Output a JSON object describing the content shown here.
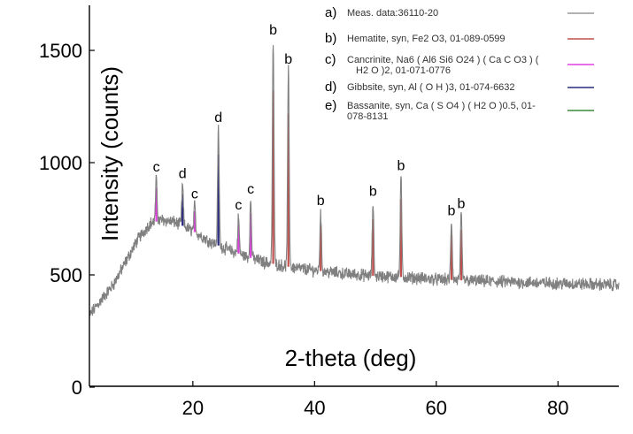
{
  "chart_data": {
    "type": "line",
    "xlabel": "2-theta (deg)",
    "ylabel": "Intensity (counts)",
    "xlim": [
      3,
      90
    ],
    "ylim": [
      0,
      1600
    ],
    "x_ticks": [
      "20",
      "40",
      "60",
      "80"
    ],
    "y_ticks": [
      "0",
      "500",
      "1000",
      "1500"
    ],
    "grid": false,
    "legend_position": "top-right",
    "legend": [
      {
        "key": "a)",
        "label": "Meas. data:36110-20",
        "color": "#999999"
      },
      {
        "key": "b)",
        "label": "Hematite, syn, Fe2 O3, 01-089-0599",
        "color": "#c0504d"
      },
      {
        "key": "c)",
        "label": "Cancrinite, Na6 ( Al6 Si6 O24 ) ( Ca C O3 ) ( H2 O )2, 01-071-0776",
        "label_lines": [
          "Cancrinite, Na6 ( Al6 Si6 O24 ) ( Ca C O3 ) (",
          "H2 O )2, 01-071-0776"
        ],
        "color": "#e040e0"
      },
      {
        "key": "d)",
        "label": "Gibbsite, syn, Al ( O H )3, 01-074-6632",
        "color": "#2a2a80"
      },
      {
        "key": "e)",
        "label": "Bassanite, syn, Ca ( S O4 ) ( H2 O )0.5, 01-078-8131",
        "label_lines": [
          "Bassanite, syn, Ca ( S O4 ) ( H2 O )0.5, 01-",
          "078-8131"
        ],
        "color": "#3a8a3a"
      }
    ],
    "background": [
      [
        3,
        320
      ],
      [
        5,
        390
      ],
      [
        7,
        460
      ],
      [
        9,
        560
      ],
      [
        11,
        660
      ],
      [
        13,
        730
      ],
      [
        15,
        745
      ],
      [
        17,
        735
      ],
      [
        19,
        710
      ],
      [
        21,
        680
      ],
      [
        23,
        645
      ],
      [
        26,
        610
      ],
      [
        29,
        580
      ],
      [
        32,
        555
      ],
      [
        36,
        535
      ],
      [
        40,
        520
      ],
      [
        45,
        505
      ],
      [
        50,
        495
      ],
      [
        55,
        490
      ],
      [
        60,
        480
      ],
      [
        70,
        470
      ],
      [
        80,
        462
      ],
      [
        90,
        455
      ]
    ],
    "peaks": [
      {
        "x": 14.0,
        "y": 930,
        "label": "c",
        "phase": "Cancrinite"
      },
      {
        "x": 18.3,
        "y": 900,
        "label": "d",
        "phase": "Gibbsite"
      },
      {
        "x": 20.3,
        "y": 810,
        "label": "c",
        "phase": "Cancrinite"
      },
      {
        "x": 24.2,
        "y": 1150,
        "label": "d",
        "phase": "Gibbsite"
      },
      {
        "x": 27.5,
        "y": 760,
        "label": "c",
        "phase": "Cancrinite"
      },
      {
        "x": 29.5,
        "y": 830,
        "label": "c",
        "phase": "Cancrinite"
      },
      {
        "x": 33.2,
        "y": 1540,
        "label": "b",
        "phase": "Hematite"
      },
      {
        "x": 35.7,
        "y": 1410,
        "label": "b",
        "phase": "Hematite"
      },
      {
        "x": 41.0,
        "y": 780,
        "label": "b",
        "phase": "Hematite"
      },
      {
        "x": 49.6,
        "y": 820,
        "label": "b",
        "phase": "Hematite"
      },
      {
        "x": 54.2,
        "y": 935,
        "label": "b",
        "phase": "Hematite"
      },
      {
        "x": 62.5,
        "y": 735,
        "label": "b",
        "phase": "Hematite"
      },
      {
        "x": 64.1,
        "y": 765,
        "label": "b",
        "phase": "Hematite"
      }
    ]
  }
}
